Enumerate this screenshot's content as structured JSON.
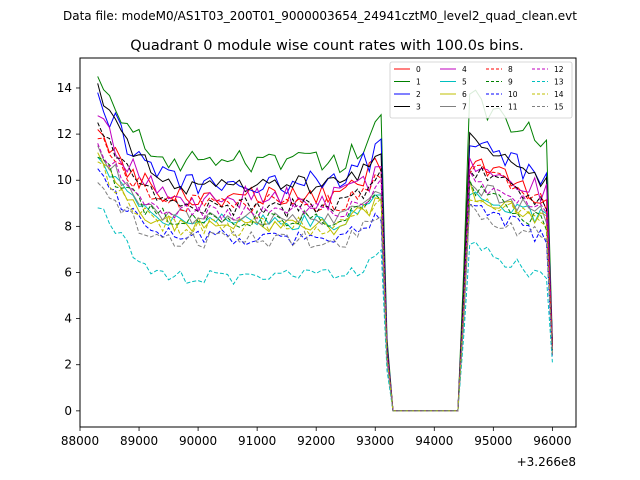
{
  "chart_data": {
    "type": "line",
    "suptitle": "Data file: modeM0/AS1T03_200T01_9000003654_24941cztM0_level2_quad_clean.evt",
    "title": "Quadrant 0 module wise count rates with 100.0s bins.",
    "xlabel": "",
    "ylabel": "",
    "x_offset_label": "+3.266e8",
    "xlim": [
      88000,
      96400
    ],
    "ylim": [
      -0.7,
      15.3
    ],
    "x_ticks": [
      88000,
      89000,
      90000,
      91000,
      92000,
      93000,
      94000,
      95000,
      96000
    ],
    "x_tick_labels": [
      "88000",
      "89000",
      "90000",
      "91000",
      "92000",
      "93000",
      "94000",
      "95000",
      "96000"
    ],
    "y_ticks": [
      0,
      2,
      4,
      6,
      8,
      10,
      12,
      14
    ],
    "y_tick_labels": [
      "0",
      "2",
      "4",
      "6",
      "8",
      "10",
      "12",
      "14"
    ],
    "gap": {
      "x_from": 93300,
      "x_to": 94400,
      "value": 0
    },
    "segments": [
      [
        88300,
        93200
      ],
      [
        94500,
        96000
      ]
    ],
    "bin_size": 100,
    "series": [
      {
        "name": "0",
        "color": "#ff0000",
        "dash": "solid",
        "start": 12.2,
        "plateau": 9.3,
        "end1": 11.0,
        "peak2": 11.0,
        "end2": 9.0,
        "final": 2.8,
        "noise": 0.45
      },
      {
        "name": "1",
        "color": "#008000",
        "dash": "solid",
        "start": 14.5,
        "plateau": 10.8,
        "end1": 12.6,
        "peak2": 13.7,
        "end2": 11.5,
        "final": 3.0,
        "noise": 0.5
      },
      {
        "name": "2",
        "color": "#0000ff",
        "dash": "solid",
        "start": 13.8,
        "plateau": 9.9,
        "end1": 11.6,
        "peak2": 11.8,
        "end2": 10.0,
        "final": 2.9,
        "noise": 0.55
      },
      {
        "name": "3",
        "color": "#000000",
        "dash": "solid",
        "start": 14.2,
        "plateau": 9.8,
        "end1": 11.1,
        "peak2": 11.8,
        "end2": 9.8,
        "final": 2.9,
        "noise": 0.4
      },
      {
        "name": "4",
        "color": "#bf00bf",
        "dash": "solid",
        "start": 12.8,
        "plateau": 9.2,
        "end1": 10.6,
        "peak2": 10.9,
        "end2": 9.4,
        "final": 2.8,
        "noise": 0.55
      },
      {
        "name": "5",
        "color": "#00bfbf",
        "dash": "solid",
        "start": 11.0,
        "plateau": 8.2,
        "end1": 9.5,
        "peak2": 9.6,
        "end2": 8.2,
        "final": 2.6,
        "noise": 0.35
      },
      {
        "name": "6",
        "color": "#bfbf00",
        "dash": "solid",
        "start": 11.2,
        "plateau": 8.0,
        "end1": 9.4,
        "peak2": 9.7,
        "end2": 8.0,
        "final": 2.6,
        "noise": 0.4
      },
      {
        "name": "7",
        "color": "#808080",
        "dash": "solid",
        "start": 11.5,
        "plateau": 8.4,
        "end1": 9.7,
        "peak2": 9.9,
        "end2": 8.4,
        "final": 2.6,
        "noise": 0.35
      },
      {
        "name": "8",
        "color": "#ff0000",
        "dash": "dashed",
        "start": 11.8,
        "plateau": 9.0,
        "end1": 10.5,
        "peak2": 10.6,
        "end2": 8.9,
        "final": 2.7,
        "noise": 0.4
      },
      {
        "name": "9",
        "color": "#008000",
        "dash": "dashed",
        "start": 11.0,
        "plateau": 8.3,
        "end1": 9.6,
        "peak2": 9.8,
        "end2": 8.0,
        "final": 2.6,
        "noise": 0.4
      },
      {
        "name": "10",
        "color": "#0000ff",
        "dash": "dashed",
        "start": 10.5,
        "plateau": 7.5,
        "end1": 8.8,
        "peak2": 9.0,
        "end2": 7.4,
        "final": 2.4,
        "noise": 0.4
      },
      {
        "name": "11",
        "color": "#000000",
        "dash": "dashed",
        "start": 12.5,
        "plateau": 8.8,
        "end1": 10.3,
        "peak2": 10.8,
        "end2": 8.8,
        "final": 2.8,
        "noise": 0.45
      },
      {
        "name": "12",
        "color": "#bf00bf",
        "dash": "dashed",
        "start": 11.6,
        "plateau": 8.6,
        "end1": 10.0,
        "peak2": 10.2,
        "end2": 8.6,
        "final": 2.7,
        "noise": 0.4
      },
      {
        "name": "13",
        "color": "#00bfbf",
        "dash": "dashed",
        "start": 8.8,
        "plateau": 5.8,
        "end1": 7.0,
        "peak2": 7.3,
        "end2": 5.7,
        "final": 2.1,
        "noise": 0.35
      },
      {
        "name": "14",
        "color": "#bfbf00",
        "dash": "dashed",
        "start": 10.8,
        "plateau": 8.0,
        "end1": 9.3,
        "peak2": 9.5,
        "end2": 7.9,
        "final": 2.5,
        "noise": 0.4
      },
      {
        "name": "15",
        "color": "#808080",
        "dash": "dashed",
        "start": 9.9,
        "plateau": 7.4,
        "end1": 8.6,
        "peak2": 8.8,
        "end2": 7.3,
        "final": 2.4,
        "noise": 0.4
      }
    ],
    "legend_position": "upper-right",
    "legend_columns": 4,
    "grid": false
  }
}
